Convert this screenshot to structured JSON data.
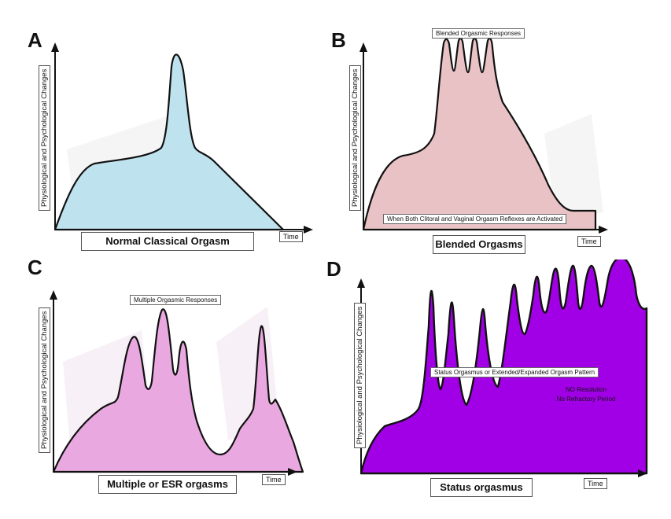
{
  "y_axis_label": "Physiological and Psychological Changes",
  "x_axis_label": "Time",
  "panels": {
    "a": {
      "letter": "A",
      "title": "Normal Classical Orgasm",
      "fill": "#bfe3ee"
    },
    "b": {
      "letter": "B",
      "title": "Blended Orgasms",
      "fill": "#e8c2c4",
      "top_note": "Blended Orgasmic Responses",
      "bottom_note": "When Both Clitoral and Vaginal Orgasm Reflexes are Activated"
    },
    "c": {
      "letter": "C",
      "title": "Multiple or ESR orgasms",
      "fill": "#e9a9e0",
      "top_note": "Multiple Orgasmic Responses"
    },
    "d": {
      "letter": "D",
      "title": "Status orgasmus",
      "fill": "#a100e6",
      "mid_note": "Status Orgasmus or Extended/Expanded Orgasm Pattern",
      "note_line1": "NO Resolution",
      "note_line2": "No Refractory Period"
    }
  }
}
